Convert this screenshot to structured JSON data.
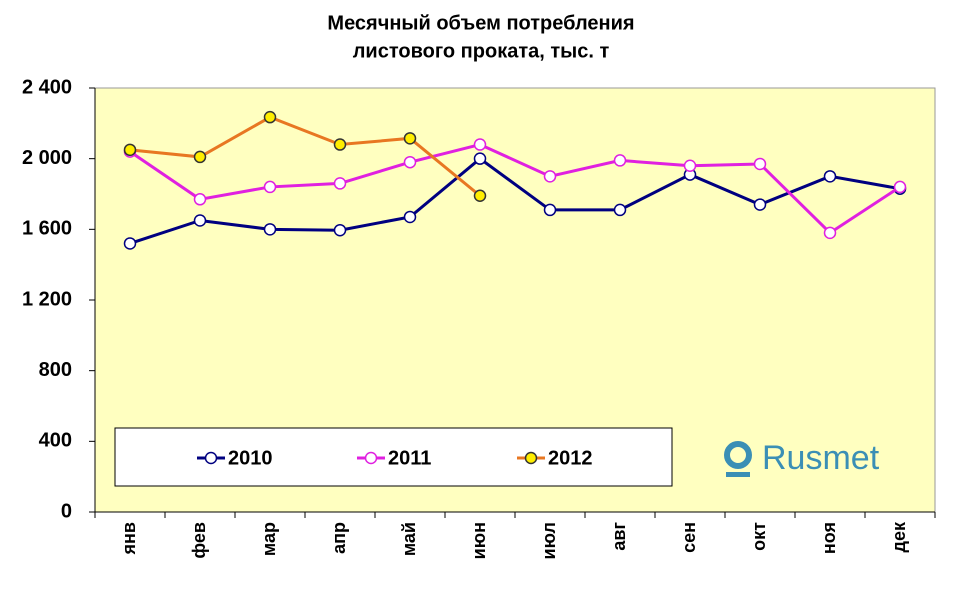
{
  "chart_data": {
    "type": "line",
    "title": [
      "Месячный объем потребления",
      "листового проката, тыс. т"
    ],
    "logo": "Rusmet",
    "categories": [
      "янв",
      "фев",
      "мар",
      "апр",
      "май",
      "июн",
      "июл",
      "авг",
      "сен",
      "окт",
      "ноя",
      "дек"
    ],
    "series": [
      {
        "name": "2010",
        "color": "#000080",
        "marker": "#ffffff",
        "values": [
          1520,
          1650,
          1600,
          1595,
          1670,
          2000,
          1710,
          1710,
          1910,
          1740,
          1900,
          1830
        ]
      },
      {
        "name": "2011",
        "color": "#e020e0",
        "marker": "#ffffff",
        "values": [
          2040,
          1770,
          1840,
          1860,
          1980,
          2080,
          1900,
          1990,
          1960,
          1970,
          1580,
          1840
        ]
      },
      {
        "name": "2012",
        "color": "#e87722",
        "marker": "#ffee00",
        "values": [
          2050,
          2010,
          2235,
          2080,
          2115,
          1790,
          null,
          null,
          null,
          null,
          null,
          null
        ]
      }
    ],
    "ylim": [
      0,
      2400
    ],
    "yticks": [
      0,
      400,
      800,
      {
        "value": 1200,
        "label": "1 200"
      },
      {
        "value": 1600,
        "label": "1 600"
      },
      {
        "value": 2000,
        "label": "2 000"
      },
      {
        "value": 2400,
        "label": "2 400"
      }
    ],
    "grid": false,
    "background": "#ffffc0"
  }
}
